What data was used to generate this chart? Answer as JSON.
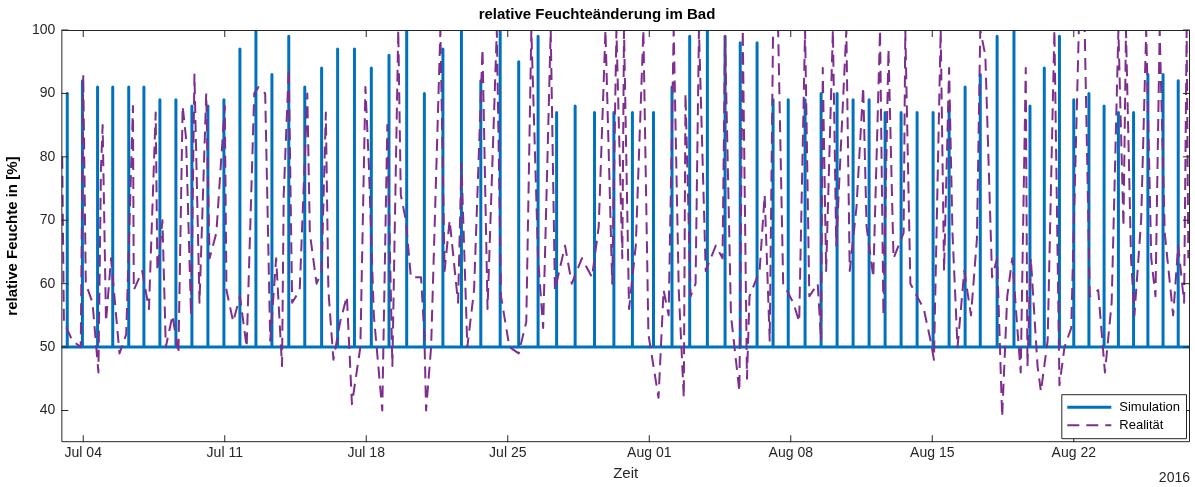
{
  "chart_data": {
    "type": "line",
    "title": "relative Feuchteänderung im Bad",
    "xlabel": "Zeit",
    "ylabel": "relative Feuchte in [%]",
    "annotations": [
      "2016"
    ],
    "xlim": [
      "2016-07-02T22:00",
      "2016-08-27T18:00"
    ],
    "xticks": [
      {
        "value": "2016-07-04",
        "label": "Jul 04"
      },
      {
        "value": "2016-07-11",
        "label": "Jul 11"
      },
      {
        "value": "2016-07-18",
        "label": "Jul 18"
      },
      {
        "value": "2016-07-25",
        "label": "Jul 25"
      },
      {
        "value": "2016-08-01",
        "label": "Aug 01"
      },
      {
        "value": "2016-08-08",
        "label": "Aug 08"
      },
      {
        "value": "2016-08-15",
        "label": "Aug 15"
      },
      {
        "value": "2016-08-22",
        "label": "Aug 22"
      }
    ],
    "ylim": [
      35,
      100
    ],
    "yticks": [
      40,
      50,
      60,
      70,
      80,
      90,
      100
    ],
    "grid": false,
    "legend": "bottom right",
    "marker": "none",
    "series": [
      {
        "name": "Simulation",
        "color": "#0072bd",
        "line_style": "solid",
        "x": [
          "2016-07-02T22:00",
          "2016-07-03T05:00",
          "2016-07-03T05:00",
          "2016-07-03T05:00",
          "2016-07-03T23:00",
          "2016-07-03T23:00",
          "2016-07-03T23:00",
          "2016-07-04T17:00",
          "2016-07-04T17:00",
          "2016-07-04T17:00",
          "2016-07-05T11:00",
          "2016-07-05T11:00",
          "2016-07-05T11:00",
          "2016-07-06T06:00",
          "2016-07-06T06:00",
          "2016-07-06T06:00",
          "2016-07-07T00:00",
          "2016-07-07T00:00",
          "2016-07-07T00:00",
          "2016-07-07T19:00",
          "2016-07-07T19:00",
          "2016-07-07T19:00",
          "2016-07-08T14:00",
          "2016-07-08T14:00",
          "2016-07-08T14:00",
          "2016-07-09T09:00",
          "2016-07-09T09:00",
          "2016-07-09T09:00",
          "2016-07-10T04:00",
          "2016-07-10T04:00",
          "2016-07-10T04:00",
          "2016-07-10T23:00",
          "2016-07-10T23:00",
          "2016-07-10T23:00",
          "2016-07-11T18:00",
          "2016-07-11T18:00",
          "2016-07-11T18:00",
          "2016-07-12T13:00",
          "2016-07-12T13:00",
          "2016-07-12T13:00",
          "2016-07-13T08:00",
          "2016-07-13T08:00",
          "2016-07-13T08:00",
          "2016-07-14T04:00",
          "2016-07-14T04:00",
          "2016-07-14T04:00",
          "2016-07-14T23:00",
          "2016-07-14T23:00",
          "2016-07-14T23:00",
          "2016-07-15T19:00",
          "2016-07-15T19:00",
          "2016-07-15T19:00",
          "2016-07-16T14:00",
          "2016-07-16T14:00",
          "2016-07-16T14:00",
          "2016-07-17T10:00",
          "2016-07-17T10:00",
          "2016-07-17T10:00",
          "2016-07-18T06:00",
          "2016-07-18T06:00",
          "2016-07-18T06:00",
          "2016-07-19T03:00",
          "2016-07-19T03:00",
          "2016-07-19T03:00",
          "2016-07-20T00:00",
          "2016-07-20T00:00",
          "2016-07-20T00:00",
          "2016-07-20T21:00",
          "2016-07-20T21:00",
          "2016-07-20T21:00",
          "2016-07-21T19:00",
          "2016-07-21T19:00",
          "2016-07-21T19:00",
          "2016-07-22T17:00",
          "2016-07-22T17:00",
          "2016-07-22T17:00",
          "2016-07-23T16:00",
          "2016-07-23T16:00",
          "2016-07-23T16:00",
          "2016-07-24T15:00",
          "2016-07-24T15:00",
          "2016-07-24T15:00",
          "2016-07-25T13:00",
          "2016-07-25T13:00",
          "2016-07-25T13:00",
          "2016-07-26T12:00",
          "2016-07-26T12:00",
          "2016-07-26T12:00",
          "2016-07-27T10:00",
          "2016-07-27T10:00",
          "2016-07-27T10:00",
          "2016-07-28T08:00",
          "2016-07-28T08:00",
          "2016-07-28T08:00",
          "2016-07-29T07:00",
          "2016-07-29T07:00",
          "2016-07-29T07:00",
          "2016-07-30T06:00",
          "2016-07-30T06:00",
          "2016-07-30T06:00",
          "2016-07-31T04:00",
          "2016-07-31T04:00",
          "2016-07-31T04:00",
          "2016-08-01T05:00",
          "2016-08-01T05:00",
          "2016-08-01T05:00",
          "2016-08-02T03:00",
          "2016-08-02T03:00",
          "2016-08-02T03:00",
          "2016-08-03T00:00",
          "2016-08-03T00:00",
          "2016-08-03T00:00",
          "2016-08-03T21:00",
          "2016-08-03T21:00",
          "2016-08-03T21:00",
          "2016-08-04T18:00",
          "2016-08-04T18:00",
          "2016-08-04T18:00",
          "2016-08-05T12:00",
          "2016-08-05T12:00",
          "2016-08-05T12:00",
          "2016-08-06T08:00",
          "2016-08-06T08:00",
          "2016-08-06T08:00",
          "2016-08-07T03:00",
          "2016-08-07T03:00",
          "2016-08-07T03:00",
          "2016-08-07T21:00",
          "2016-08-07T21:00",
          "2016-08-07T21:00",
          "2016-08-08T17:00",
          "2016-08-08T17:00",
          "2016-08-08T17:00",
          "2016-08-09T12:00",
          "2016-08-09T12:00",
          "2016-08-09T12:00",
          "2016-08-10T07:00",
          "2016-08-10T07:00",
          "2016-08-10T07:00",
          "2016-08-11T02:00",
          "2016-08-11T02:00",
          "2016-08-11T02:00",
          "2016-08-11T21:00",
          "2016-08-11T21:00",
          "2016-08-11T21:00",
          "2016-08-12T16:00",
          "2016-08-12T16:00",
          "2016-08-12T16:00",
          "2016-08-13T11:00",
          "2016-08-13T11:00",
          "2016-08-13T11:00",
          "2016-08-14T06:00",
          "2016-08-14T06:00",
          "2016-08-14T06:00",
          "2016-08-15T01:00",
          "2016-08-15T01:00",
          "2016-08-15T01:00",
          "2016-08-15T20:00",
          "2016-08-15T20:00",
          "2016-08-15T20:00",
          "2016-08-16T15:00",
          "2016-08-16T15:00",
          "2016-08-16T15:00",
          "2016-08-17T09:00",
          "2016-08-17T09:00",
          "2016-08-17T09:00",
          "2016-08-18T05:00",
          "2016-08-18T05:00",
          "2016-08-18T05:00",
          "2016-08-19T01:00",
          "2016-08-19T01:00",
          "2016-08-19T01:00",
          "2016-08-19T20:00",
          "2016-08-19T20:00",
          "2016-08-19T20:00",
          "2016-08-20T13:00",
          "2016-08-20T13:00",
          "2016-08-20T13:00",
          "2016-08-21T07:00",
          "2016-08-21T07:00",
          "2016-08-21T07:00",
          "2016-08-22T00:00",
          "2016-08-22T00:00",
          "2016-08-22T00:00",
          "2016-08-22T18:00",
          "2016-08-22T18:00",
          "2016-08-22T18:00",
          "2016-08-23T12:00",
          "2016-08-23T12:00",
          "2016-08-23T12:00",
          "2016-08-24T05:00",
          "2016-08-24T05:00",
          "2016-08-24T05:00",
          "2016-08-24T23:00",
          "2016-08-24T23:00",
          "2016-08-24T23:00",
          "2016-08-25T16:00",
          "2016-08-25T16:00",
          "2016-08-25T16:00",
          "2016-08-26T10:00",
          "2016-08-26T10:00",
          "2016-08-26T10:00",
          "2016-08-27T04:00",
          "2016-08-27T04:00",
          "2016-08-27T04:00",
          "2016-08-27T18:00"
        ],
        "values": [
          50,
          50,
          90,
          50,
          50,
          92,
          50,
          50,
          91,
          50,
          50,
          91,
          50,
          50,
          91,
          50,
          50,
          91,
          50,
          50,
          89,
          50,
          50,
          89,
          50,
          50,
          88,
          50,
          50,
          88,
          50,
          50,
          89,
          50,
          50,
          97,
          50,
          50,
          100,
          50,
          50,
          93,
          50,
          50,
          99,
          50,
          50,
          91,
          50,
          50,
          94,
          50,
          50,
          97,
          50,
          50,
          97,
          50,
          50,
          94,
          50,
          50,
          96,
          50,
          50,
          100,
          50,
          50,
          90,
          50,
          50,
          97,
          50,
          50,
          100,
          50,
          50,
          92,
          50,
          50,
          100,
          50,
          50,
          95,
          50,
          50,
          99,
          50,
          50,
          87,
          50,
          50,
          88,
          50,
          50,
          87,
          50,
          50,
          87,
          50,
          50,
          87,
          50,
          50,
          87,
          50,
          50,
          91,
          50,
          50,
          99,
          50,
          50,
          100,
          50,
          50,
          99,
          50,
          50,
          98,
          50,
          50,
          98,
          50,
          50,
          89,
          50,
          50,
          89,
          50,
          50,
          89,
          50,
          50,
          90,
          50,
          50,
          90,
          50,
          50,
          89,
          50,
          50,
          89,
          50,
          50,
          87,
          50,
          50,
          87,
          50,
          50,
          87,
          50,
          50,
          87,
          50,
          50,
          88,
          50,
          50,
          91,
          50,
          50,
          93,
          50,
          50,
          99,
          50,
          50,
          100,
          50,
          50,
          88,
          50,
          50,
          94,
          50,
          50,
          99,
          50,
          50,
          89,
          50,
          50,
          90,
          50,
          50,
          88,
          50,
          50,
          87,
          50,
          50,
          87,
          50,
          50,
          93,
          50,
          50,
          93,
          50,
          50,
          92,
          50,
          50
        ]
      },
      {
        "name": "Realität",
        "color": "#7e2f8e",
        "line_style": "dashed",
        "x": [
          "2016-07-02T23:00",
          "2016-07-03T01:00",
          "2016-07-03T11:00",
          "2016-07-03T21:00",
          "2016-07-04T00:00",
          "2016-07-04T03:00",
          "2016-07-04T11:00",
          "2016-07-04T18:00",
          "2016-07-04T21:00",
          "2016-07-04T23:00",
          "2016-07-05T03:00",
          "2016-07-05T09:00",
          "2016-07-05T19:00",
          "2016-07-06T03:00",
          "2016-07-06T11:00",
          "2016-07-06T12:00",
          "2016-07-06T22:00",
          "2016-07-07T06:00",
          "2016-07-07T14:00",
          "2016-07-07T16:00",
          "2016-07-07T22:00",
          "2016-07-08T02:00",
          "2016-07-08T10:00",
          "2016-07-08T17:00",
          "2016-07-08T22:00",
          "2016-07-09T02:00",
          "2016-07-09T08:00",
          "2016-07-09T12:00",
          "2016-07-09T18:00",
          "2016-07-10T02:00",
          "2016-07-10T06:00",
          "2016-07-10T14:00",
          "2016-07-11T00:00",
          "2016-07-11T02:00",
          "2016-07-11T10:00",
          "2016-07-11T18:00",
          "2016-07-12T02:00",
          "2016-07-12T11:00",
          "2016-07-12T16:00",
          "2016-07-13T00:00",
          "2016-07-13T06:00",
          "2016-07-13T13:00",
          "2016-07-13T20:00",
          "2016-07-13T22:00",
          "2016-07-14T04:00",
          "2016-07-14T08:00",
          "2016-07-14T17:00",
          "2016-07-15T02:00",
          "2016-07-15T05:00",
          "2016-07-15T13:00",
          "2016-07-15T19:00",
          "2016-07-16T00:00",
          "2016-07-16T03:00",
          "2016-07-16T09:00",
          "2016-07-16T17:00",
          "2016-07-17T01:00",
          "2016-07-17T07:00",
          "2016-07-17T17:00",
          "2016-07-17T23:00",
          "2016-07-18T03:00",
          "2016-07-18T09:00",
          "2016-07-18T19:00",
          "2016-07-19T01:00",
          "2016-07-19T07:00",
          "2016-07-19T14:00",
          "2016-07-19T17:00",
          "2016-07-19T23:00",
          "2016-07-20T05:00",
          "2016-07-20T17:00",
          "2016-07-20T21:00",
          "2016-07-20T23:00",
          "2016-07-21T05:00",
          "2016-07-21T16:00",
          "2016-07-21T21:00",
          "2016-07-22T03:00",
          "2016-07-22T13:00",
          "2016-07-22T17:00",
          "2016-07-23T00:00",
          "2016-07-23T08:00",
          "2016-07-23T18:00",
          "2016-07-24T00:00",
          "2016-07-24T11:00",
          "2016-07-24T16:00",
          "2016-07-25T02:00",
          "2016-07-25T13:00",
          "2016-07-25T22:00",
          "2016-07-26T04:00",
          "2016-07-26T12:00",
          "2016-07-26T18:00",
          "2016-07-27T03:00",
          "2016-07-27T08:00",
          "2016-07-27T20:00",
          "2016-07-28T04:00",
          "2016-07-28T16:00",
          "2016-07-29T04:00",
          "2016-07-29T12:00",
          "2016-07-29T20:00",
          "2016-07-30T04:00",
          "2016-07-30T09:00",
          "2016-07-30T16:00",
          "2016-07-30T18:00",
          "2016-07-31T00:00",
          "2016-07-31T08:00",
          "2016-07-31T17:00",
          "2016-07-31T23:00",
          "2016-08-01T11:00",
          "2016-08-01T17:00",
          "2016-08-01T23:00",
          "2016-08-02T05:00",
          "2016-08-02T11:00",
          "2016-08-02T17:00",
          "2016-08-02T19:00",
          "2016-08-03T01:00",
          "2016-08-03T07:00",
          "2016-08-03T11:00",
          "2016-08-03T19:00",
          "2016-08-04T07:00",
          "2016-08-04T15:00",
          "2016-08-04T18:00",
          "2016-08-05T01:00",
          "2016-08-05T11:00",
          "2016-08-05T15:00",
          "2016-08-05T20:00",
          "2016-08-05T23:00",
          "2016-08-06T11:00",
          "2016-08-06T17:00",
          "2016-08-06T23:00",
          "2016-08-07T03:00",
          "2016-08-07T09:00",
          "2016-08-07T15:00",
          "2016-08-08T03:00",
          "2016-08-08T10:00",
          "2016-08-08T17:00",
          "2016-08-08T22:00",
          "2016-08-09T08:00",
          "2016-08-09T12:00",
          "2016-08-09T14:00",
          "2016-08-09T18:00",
          "2016-08-10T02:00",
          "2016-08-10T06:00",
          "2016-08-10T18:00",
          "2016-08-10T22:00",
          "2016-08-11T06:00",
          "2016-08-11T14:00",
          "2016-08-11T18:00",
          "2016-08-12T02:00",
          "2016-08-12T10:00",
          "2016-08-12T14:00",
          "2016-08-12T20:00",
          "2016-08-13T02:00",
          "2016-08-13T14:00",
          "2016-08-13T16:00",
          "2016-08-13T22:00",
          "2016-08-14T06:00",
          "2016-08-14T14:00",
          "2016-08-14T22:00",
          "2016-08-15T02:00",
          "2016-08-15T10:00",
          "2016-08-15T14:00",
          "2016-08-15T20:00",
          "2016-08-16T00:00",
          "2016-08-16T06:00",
          "2016-08-16T14:00",
          "2016-08-16T22:00",
          "2016-08-17T05:00",
          "2016-08-17T09:00",
          "2016-08-17T15:00",
          "2016-08-17T23:00",
          "2016-08-18T05:00",
          "2016-08-18T11:00",
          "2016-08-18T17:00",
          "2016-08-18T23:00",
          "2016-08-19T05:00",
          "2016-08-19T09:00",
          "2016-08-19T15:00",
          "2016-08-19T17:00",
          "2016-08-19T21:00",
          "2016-08-20T05:00",
          "2016-08-20T09:00",
          "2016-08-20T17:00",
          "2016-08-21T01:00",
          "2016-08-21T07:00",
          "2016-08-21T13:00",
          "2016-08-21T21:00",
          "2016-08-22T06:00",
          "2016-08-22T13:00",
          "2016-08-22T19:00",
          "2016-08-23T05:00",
          "2016-08-23T13:00",
          "2016-08-23T21:00",
          "2016-08-24T05:00",
          "2016-08-24T11:00",
          "2016-08-24T14:00",
          "2016-08-24T20:00",
          "2016-08-25T00:00",
          "2016-08-25T08:00",
          "2016-08-25T14:00",
          "2016-08-25T20:00",
          "2016-08-26T01:00",
          "2016-08-26T06:00",
          "2016-08-26T12:00",
          "2016-08-26T22:00",
          "2016-08-27T04:00",
          "2016-08-27T11:00",
          "2016-08-27T14:00",
          "2016-08-27T16:00"
        ],
        "values": [
          80,
          54,
          51,
          50,
          93,
          60,
          57,
          46,
          78,
          85,
          54,
          64,
          49,
          52,
          88,
          59,
          62,
          56,
          87,
          62,
          70,
          50,
          55,
          49,
          88,
          83,
          55,
          93,
          57,
          90,
          64,
          68,
          88,
          59,
          54,
          58,
          50,
          90,
          91,
          90,
          51,
          64,
          47,
          74,
          94,
          57,
          59,
          90,
          68,
          60,
          62,
          87,
          59,
          48,
          54,
          58,
          41,
          50,
          91,
          79,
          55,
          40,
          85,
          47,
          100,
          74,
          70,
          61,
          61,
          52,
          40,
          50,
          100,
          62,
          70,
          57,
          79,
          50,
          59,
          97,
          56,
          100,
          58,
          50,
          49,
          54,
          100,
          64,
          53,
          100,
          59,
          66,
          60,
          64,
          61,
          69,
          100,
          60,
          100,
          64,
          100,
          56,
          66,
          100,
          52,
          42,
          59,
          55,
          100,
          59,
          42,
          90,
          58,
          60,
          100,
          62,
          66,
          64,
          99,
          55,
          43,
          100,
          45,
          58,
          62,
          74,
          51,
          100,
          100,
          60,
          57,
          54,
          100,
          58,
          60,
          51,
          94,
          62,
          100,
          66,
          100,
          62,
          72,
          91,
          69,
          61,
          100,
          55,
          97,
          64,
          68,
          100,
          60,
          58,
          56,
          51,
          48,
          100,
          62,
          94,
          68,
          50,
          62,
          55,
          67,
          100,
          96,
          61,
          64,
          39,
          58,
          64,
          53,
          46,
          94,
          47,
          64,
          47,
          43,
          51,
          100,
          44,
          50,
          53,
          100,
          100,
          58,
          59,
          46,
          57,
          100,
          69,
          100,
          64,
          55,
          70,
          100,
          64,
          58,
          100,
          68,
          55,
          66,
          57,
          100,
          64
        ]
      }
    ]
  }
}
